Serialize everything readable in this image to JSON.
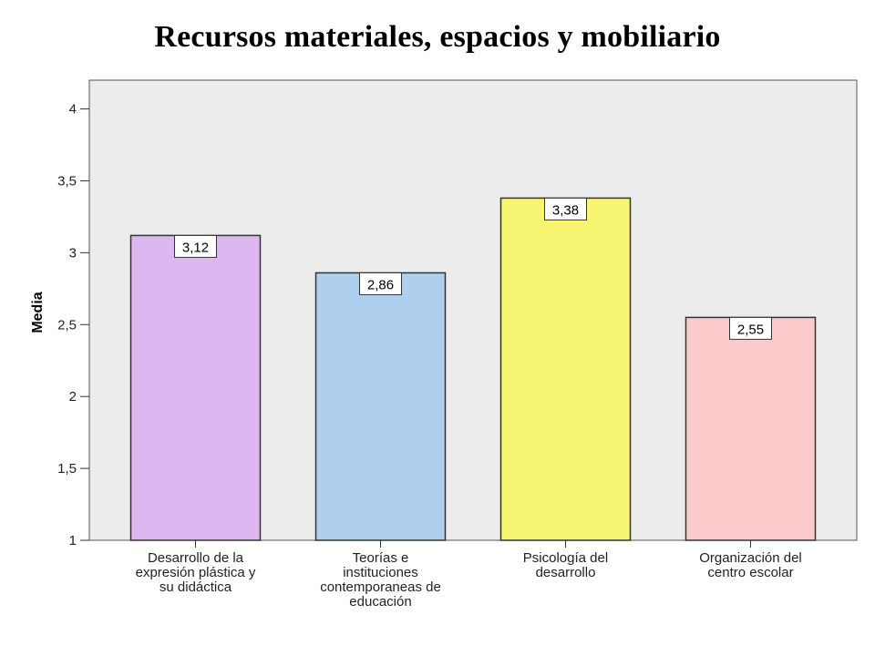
{
  "title": "Recursos materiales, espacios y mobiliario",
  "colors": {
    "plot_background": "#ececec",
    "bar_outline": "#333333"
  },
  "chart_data": {
    "type": "bar",
    "title": "Recursos materiales, espacios y mobiliario",
    "xlabel": "",
    "ylabel": "Media",
    "ylim": [
      1,
      4.2
    ],
    "yticks": [
      1,
      1.5,
      2,
      2.5,
      3,
      3.5,
      4
    ],
    "ytick_labels": [
      "1",
      "1,5",
      "2",
      "2,5",
      "3",
      "3,5",
      "4"
    ],
    "grid": false,
    "categories": [
      [
        "Desarrollo de la",
        "expresión plástica y",
        "su didáctica"
      ],
      [
        "Teorías e",
        "instituciones",
        "contemporaneas de",
        "educación"
      ],
      [
        "Psicología del",
        "desarrollo"
      ],
      [
        "Organización del",
        "centro escolar"
      ]
    ],
    "values": [
      3.12,
      2.86,
      3.38,
      2.55
    ],
    "value_labels": [
      "3,12",
      "2,86",
      "3,38",
      "2,55"
    ],
    "bar_colors": [
      "#ddb8f0",
      "#aecfee",
      "#f8f572",
      "#fccaca"
    ]
  }
}
